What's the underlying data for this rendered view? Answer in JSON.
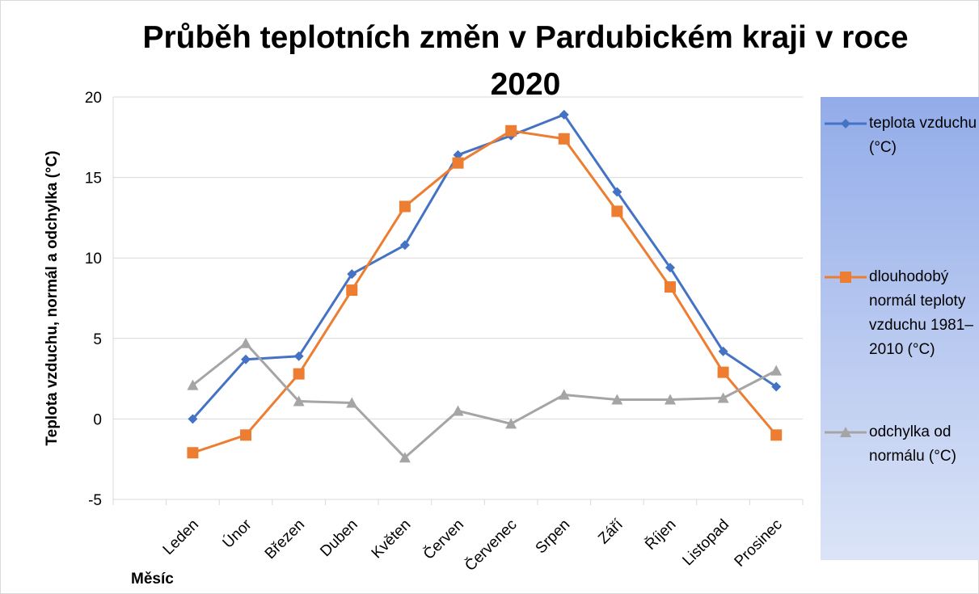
{
  "chart_data": {
    "type": "line",
    "title": "Průběh teplotních změn v Pardubickém kraji v roce 2020",
    "x_label": "Měsíc",
    "y_label": "Teplota vzduchu, normál a odchylka (°C)",
    "categories": [
      null,
      "Leden",
      "Únor",
      "Březen",
      "Duben",
      "Květen",
      "Červen",
      "Červenec",
      "Srpen",
      "Září",
      "Říjen",
      "Listopad",
      "Prosinec"
    ],
    "series": [
      {
        "name": "teplota vzduchu (°C)",
        "color": "#4472c4",
        "marker": "diamond",
        "values": [
          null,
          0,
          3.7,
          3.9,
          9.0,
          10.8,
          16.4,
          17.6,
          18.9,
          14.1,
          9.4,
          4.2,
          2.0
        ]
      },
      {
        "name": "dlouhodobý normál teploty vzduchu 1981–2010 (°C)",
        "color": "#ed7d31",
        "marker": "square",
        "values": [
          null,
          -2.1,
          -1.0,
          2.8,
          8.0,
          13.2,
          15.9,
          17.9,
          17.4,
          12.9,
          8.2,
          2.9,
          -1.0
        ]
      },
      {
        "name": "odchylka od normálu (°C)",
        "color": "#a5a5a5",
        "marker": "triangle",
        "values": [
          null,
          2.1,
          4.7,
          1.1,
          1.0,
          -2.4,
          0.5,
          -0.3,
          1.5,
          1.2,
          1.2,
          1.3,
          3.0
        ]
      }
    ],
    "ylim": [
      -5,
      20
    ],
    "yticks": [
      -5,
      0,
      5,
      10,
      15,
      20
    ],
    "grid": true,
    "legend": "right"
  }
}
